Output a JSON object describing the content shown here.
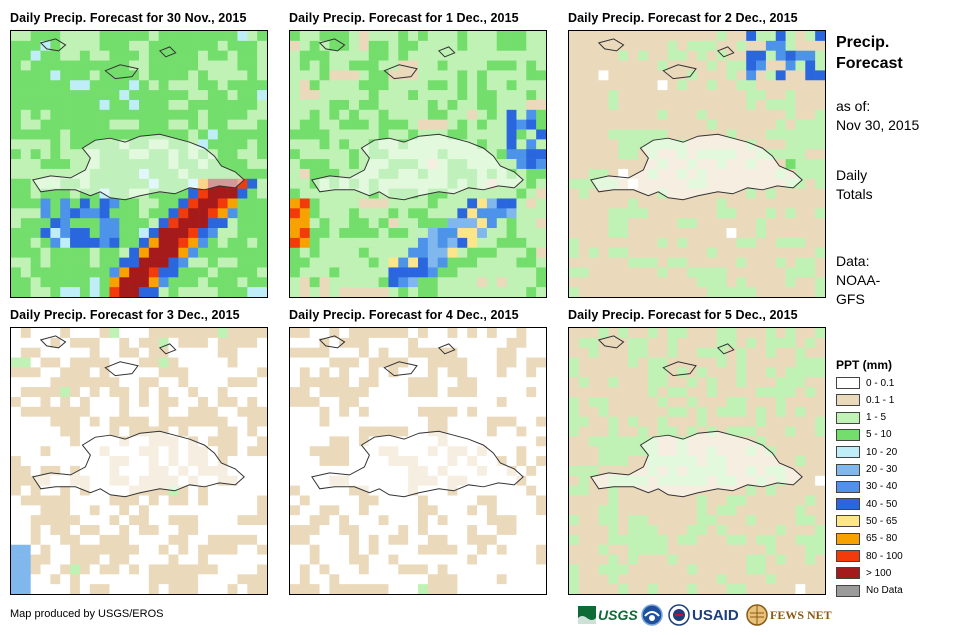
{
  "panels": [
    {
      "title": "Daily Precip. Forecast for 30 Nov., 2015"
    },
    {
      "title": "Daily Precip. Forecast for 1 Dec., 2015"
    },
    {
      "title": "Daily Precip. Forecast for 2 Dec., 2015"
    },
    {
      "title": "Daily Precip. Forecast for 3 Dec., 2015"
    },
    {
      "title": "Daily Precip. Forecast for 4 Dec., 2015"
    },
    {
      "title": "Daily Precip. Forecast for 5 Dec., 2015"
    }
  ],
  "sidebar": {
    "title_line1": "Precip.",
    "title_line2": "Forecast",
    "asof_label": "as of:",
    "asof_date": "Nov 30, 2015",
    "totals_line1": "Daily",
    "totals_line2": "Totals",
    "data_line1": "Data:",
    "data_line2": "NOAA-",
    "data_line3": "GFS"
  },
  "legend": {
    "title": "PPT (mm)",
    "items": [
      {
        "label": "0 - 0.1",
        "color": "#ffffff"
      },
      {
        "label": "0.1 - 1",
        "color": "#ead9bb"
      },
      {
        "label": "1 - 5",
        "color": "#bff2b4"
      },
      {
        "label": "5 - 10",
        "color": "#73de6c"
      },
      {
        "label": "10 - 20",
        "color": "#bfeef8"
      },
      {
        "label": "20 - 30",
        "color": "#80b8ee"
      },
      {
        "label": "30 - 40",
        "color": "#4d93ea"
      },
      {
        "label": "40 - 50",
        "color": "#2a66dd"
      },
      {
        "label": "50 - 65",
        "color": "#fde68a"
      },
      {
        "label": "65 - 80",
        "color": "#f7a200"
      },
      {
        "label": "80 - 100",
        "color": "#f23a0a"
      },
      {
        "label": "> 100",
        "color": "#a51a1a"
      },
      {
        "label": "No Data",
        "color": "#9b9b9b"
      }
    ]
  },
  "footer": {
    "credit": "Map produced by USGS/EROS",
    "logos": {
      "usgs": "USGS",
      "usaid": "USAID",
      "fewsnet": "FEWS NET"
    }
  }
}
